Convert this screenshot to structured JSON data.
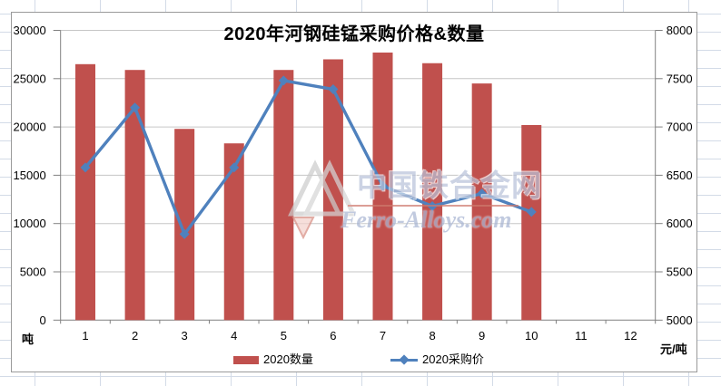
{
  "chart_data": {
    "type": "combo-bar-line",
    "title": "2020年河钢硅锰采购价格&数量",
    "categories": [
      "1",
      "2",
      "3",
      "4",
      "5",
      "6",
      "7",
      "8",
      "9",
      "10",
      "11",
      "12"
    ],
    "series": [
      {
        "name": "2020数量",
        "type": "bar",
        "axis": "left",
        "color": "#C0504D",
        "values": [
          26500,
          25900,
          19800,
          18300,
          25900,
          27000,
          27700,
          26600,
          24500,
          20200,
          null,
          null
        ]
      },
      {
        "name": "2020采购价",
        "type": "line",
        "axis": "right",
        "color": "#4F81BD",
        "marker": "diamond",
        "values": [
          6580,
          7200,
          5890,
          6580,
          7480,
          7390,
          6390,
          6180,
          6310,
          6120,
          null,
          null
        ]
      }
    ],
    "left_axis": {
      "min": 0,
      "max": 30000,
      "step": 5000,
      "unit": "吨",
      "ticks": [
        "0",
        "5000",
        "10000",
        "15000",
        "20000",
        "25000",
        "30000"
      ]
    },
    "right_axis": {
      "min": 5000,
      "max": 8000,
      "step": 500,
      "unit": "元/吨",
      "ticks": [
        "5000",
        "5500",
        "6000",
        "6500",
        "7000",
        "7500",
        "8000"
      ]
    },
    "legend_position": "bottom",
    "grid": true,
    "colors": {
      "gridline": "#c6c6c6",
      "axis": "#808080",
      "sheet_grid": "#d3dbe7"
    }
  },
  "watermark": {
    "cn": "中国铁合金网",
    "en": "Ferro-Alloys.com"
  }
}
